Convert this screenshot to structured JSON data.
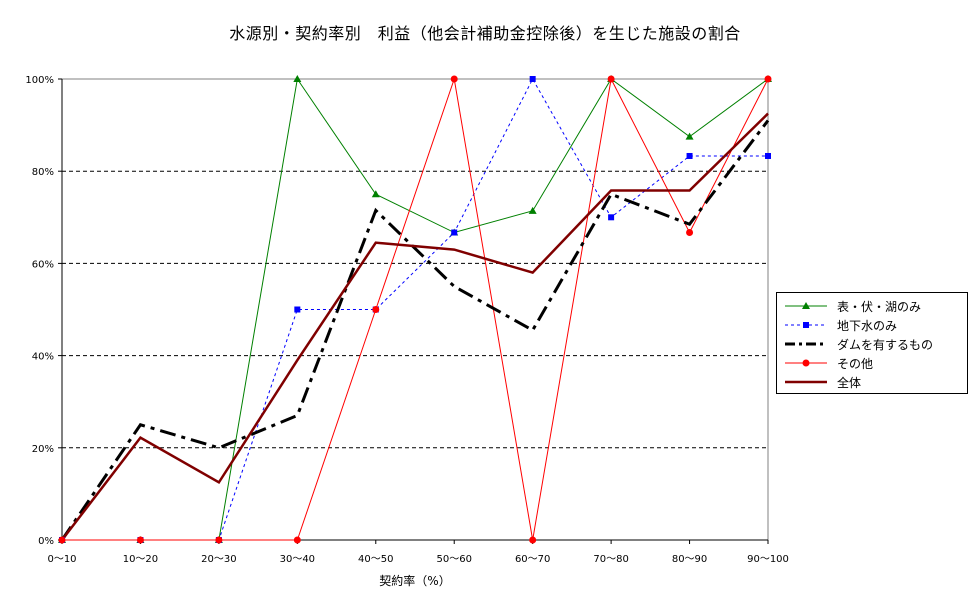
{
  "chart_data": {
    "type": "line",
    "title": "水源別・契約率別　利益（他会計補助金控除後）を生じた施設の割合",
    "xlabel": "契約率（%）",
    "ylabel": "",
    "categories": [
      "0～10",
      "10～20",
      "20～30",
      "30～40",
      "40～50",
      "50～60",
      "60～70",
      "70～80",
      "80～90",
      "90～100"
    ],
    "y_ticks": [
      "0%",
      "20%",
      "40%",
      "60%",
      "80%",
      "100%"
    ],
    "ylim": [
      0,
      100
    ],
    "grid": "horizontal dashed",
    "legend_position": "right",
    "series": [
      {
        "name": "表・伏・湖のみ",
        "values": [
          0,
          0,
          0,
          100,
          75,
          66.7,
          71.4,
          100,
          87.5,
          100
        ],
        "color": "#008000",
        "marker": "triangle",
        "line": "solid"
      },
      {
        "name": "地下水のみ",
        "values": [
          0,
          0,
          0,
          50,
          50,
          66.7,
          100,
          70,
          83.3,
          83.3
        ],
        "color": "#0000ff",
        "marker": "square",
        "line": "dashed"
      },
      {
        "name": "ダムを有するもの",
        "values": [
          0,
          25,
          20,
          27,
          71.5,
          55,
          45.5,
          75,
          68.5,
          91
        ],
        "color": "#000000",
        "marker": "none",
        "line": "dashdot-thick"
      },
      {
        "name": "その他",
        "values": [
          0,
          0,
          0,
          0,
          50,
          100,
          0,
          100,
          66.7,
          100
        ],
        "color": "#ff0000",
        "marker": "circle",
        "line": "solid"
      },
      {
        "name": "全体",
        "values": [
          0,
          22.2,
          12.5,
          39,
          64.5,
          63,
          58,
          75.8,
          75.8,
          92.5
        ],
        "color": "#800000",
        "marker": "none",
        "line": "thick"
      }
    ]
  }
}
